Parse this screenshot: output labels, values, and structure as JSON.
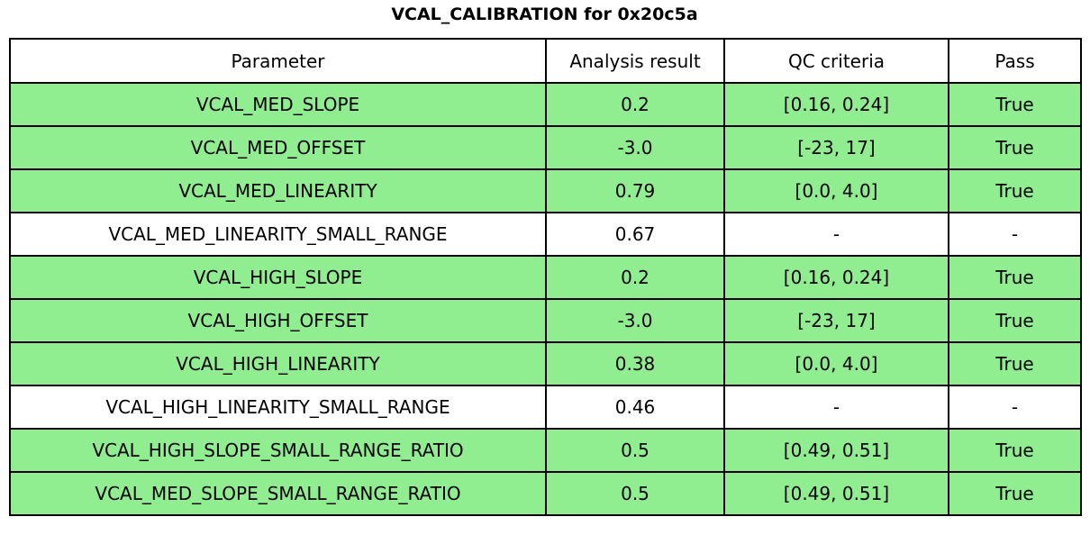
{
  "title": "VCAL_CALIBRATION for 0x20c5a",
  "chart_data": {
    "type": "table",
    "title": "VCAL_CALIBRATION for 0x20c5a",
    "columns": [
      "Parameter",
      "Analysis result",
      "QC criteria",
      "Pass"
    ],
    "rows": [
      {
        "parameter": "VCAL_MED_SLOPE",
        "result": "0.2",
        "qc": "[0.16, 0.24]",
        "pass": "True",
        "highlighted": true
      },
      {
        "parameter": "VCAL_MED_OFFSET",
        "result": "-3.0",
        "qc": "[-23, 17]",
        "pass": "True",
        "highlighted": true
      },
      {
        "parameter": "VCAL_MED_LINEARITY",
        "result": "0.79",
        "qc": "[0.0, 4.0]",
        "pass": "True",
        "highlighted": true
      },
      {
        "parameter": "VCAL_MED_LINEARITY_SMALL_RANGE",
        "result": "0.67",
        "qc": "-",
        "pass": "-",
        "highlighted": false
      },
      {
        "parameter": "VCAL_HIGH_SLOPE",
        "result": "0.2",
        "qc": "[0.16, 0.24]",
        "pass": "True",
        "highlighted": true
      },
      {
        "parameter": "VCAL_HIGH_OFFSET",
        "result": "-3.0",
        "qc": "[-23, 17]",
        "pass": "True",
        "highlighted": true
      },
      {
        "parameter": "VCAL_HIGH_LINEARITY",
        "result": "0.38",
        "qc": "[0.0, 4.0]",
        "pass": "True",
        "highlighted": true
      },
      {
        "parameter": "VCAL_HIGH_LINEARITY_SMALL_RANGE",
        "result": "0.46",
        "qc": "-",
        "pass": "-",
        "highlighted": false
      },
      {
        "parameter": "VCAL_HIGH_SLOPE_SMALL_RANGE_RATIO",
        "result": "0.5",
        "qc": "[0.49, 0.51]",
        "pass": "True",
        "highlighted": true
      },
      {
        "parameter": "VCAL_MED_SLOPE_SMALL_RANGE_RATIO",
        "result": "0.5",
        "qc": "[0.49, 0.51]",
        "pass": "True",
        "highlighted": true
      }
    ]
  },
  "colors": {
    "pass_row_background": "#90ee90",
    "default_row_background": "#ffffff",
    "border": "#000000",
    "text": "#000000"
  }
}
